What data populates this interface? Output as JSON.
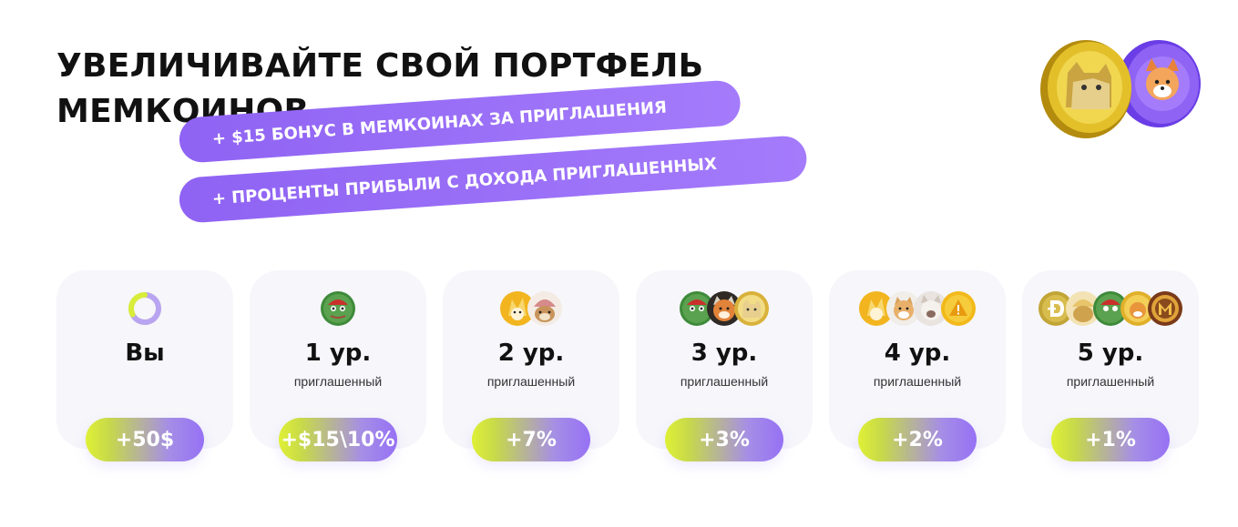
{
  "header": {
    "title_line1": "УВЕЛИЧИВАЙТЕ СВОЙ ПОРТФЕЛЬ",
    "title_line2": "МЕМКОИНОВ"
  },
  "bonuses": [
    "+ $15 БОНУС В МЕМКОИНАХ ЗА ПРИГЛАШЕНИЯ",
    "+ ПРОЦЕНТЫ ПРИБЫЛИ С ДОХОДА ПРИГЛАШЕННЫХ"
  ],
  "hero_icons": [
    "doge-coin-icon",
    "shiba-coin-icon"
  ],
  "colors": {
    "accent_purple": "#9b72f6",
    "badge_lime": "#dff036",
    "badge_violet": "#9671f5",
    "card_bg": "#f6f6fb"
  },
  "levels": [
    {
      "label": "Вы",
      "sub": "",
      "reward": "+50$",
      "icons": [
        "progress-ring-icon"
      ]
    },
    {
      "label": "1 ур.",
      "sub": "приглашенный",
      "reward": "+$15\\10%",
      "icons": [
        "pepe-coin-icon"
      ]
    },
    {
      "label": "2 ур.",
      "sub": "приглашенный",
      "reward": "+7%",
      "icons": [
        "bonk-coin-icon",
        "dogwifhat-coin-icon"
      ]
    },
    {
      "label": "3 ур.",
      "sub": "приглашенный",
      "reward": "+3%",
      "icons": [
        "pepe-coin-icon",
        "floki-coin-icon",
        "doge-coin-icon"
      ]
    },
    {
      "label": "4 ур.",
      "sub": "приглашенный",
      "reward": "+2%",
      "icons": [
        "bonk-coin-icon",
        "shiba-coin-icon",
        "cat-coin-icon",
        "warning-coin-icon"
      ]
    },
    {
      "label": "5 ур.",
      "sub": "приглашенный",
      "reward": "+1%",
      "icons": [
        "dogecoin-d-icon",
        "dogwifhat-coin-icon",
        "pepe-coin-icon",
        "shiba-coin-icon",
        "memecoin-m-icon"
      ]
    }
  ]
}
